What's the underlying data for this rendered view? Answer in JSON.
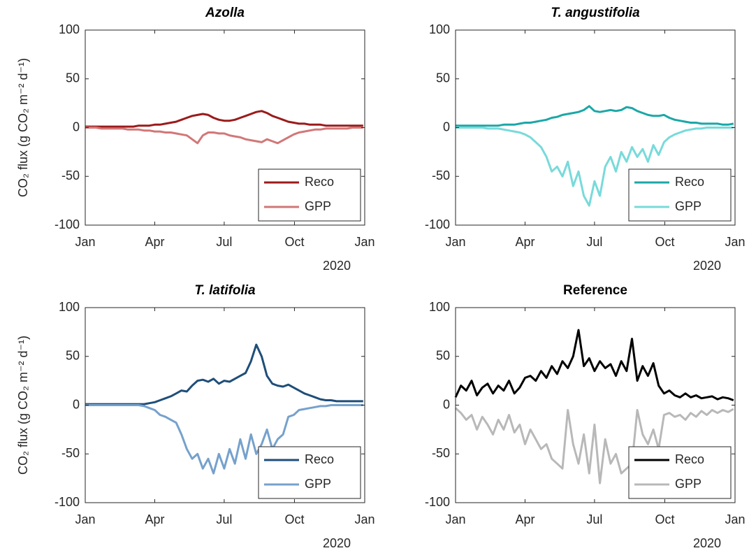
{
  "chart_data": [
    {
      "type": "line",
      "title": "Azolla",
      "title_style": "italic",
      "ylabel": "CO₂ flux (g CO₂ m⁻² d⁻¹)",
      "x_annotation": "2020",
      "legend": "lower right",
      "x": [
        0,
        7,
        14,
        21,
        28,
        35,
        42,
        49,
        56,
        63,
        70,
        77,
        84,
        91,
        98,
        105,
        112,
        119,
        126,
        133,
        140,
        147,
        154,
        161,
        168,
        175,
        182,
        189,
        196,
        203,
        210,
        217,
        224,
        231,
        238,
        245,
        252,
        259,
        266,
        273,
        280,
        287,
        294,
        301,
        308,
        315,
        322,
        329,
        336,
        343,
        350,
        357,
        364
      ],
      "xlim": [
        0,
        366
      ],
      "xticks": [
        {
          "value": 0,
          "label": "Jan"
        },
        {
          "value": 91,
          "label": "Apr"
        },
        {
          "value": 182,
          "label": "Jul"
        },
        {
          "value": 274,
          "label": "Oct"
        },
        {
          "value": 366,
          "label": "Jan"
        }
      ],
      "ylim": [
        -100,
        100
      ],
      "yticks": [
        -100,
        -50,
        0,
        50,
        100
      ],
      "series": [
        {
          "name": "Reco",
          "color": "#9b1b1b",
          "values": [
            1,
            1,
            1,
            1,
            1,
            1,
            1,
            1,
            1,
            1,
            2,
            2,
            2,
            3,
            3,
            4,
            5,
            6,
            8,
            10,
            12,
            13,
            14,
            13,
            10,
            8,
            7,
            7,
            8,
            10,
            12,
            14,
            16,
            17,
            15,
            12,
            10,
            8,
            6,
            5,
            4,
            4,
            3,
            3,
            3,
            2,
            2,
            2,
            2,
            2,
            2,
            2,
            2
          ]
        },
        {
          "name": "GPP",
          "color": "#d27777",
          "values": [
            0,
            0,
            0,
            -1,
            -1,
            -1,
            -1,
            -1,
            -2,
            -2,
            -2,
            -3,
            -3,
            -4,
            -4,
            -5,
            -5,
            -6,
            -7,
            -8,
            -12,
            -16,
            -8,
            -5,
            -5,
            -6,
            -6,
            -8,
            -9,
            -10,
            -12,
            -13,
            -14,
            -15,
            -12,
            -14,
            -16,
            -13,
            -10,
            -7,
            -5,
            -4,
            -3,
            -2,
            -2,
            -1,
            -1,
            -1,
            -1,
            -1,
            0,
            0,
            0
          ]
        }
      ]
    },
    {
      "type": "line",
      "title": "T. angustifolia",
      "title_style": "italic",
      "x_annotation": "2020",
      "legend": "lower right",
      "x": [
        0,
        7,
        14,
        21,
        28,
        35,
        42,
        49,
        56,
        63,
        70,
        77,
        84,
        91,
        98,
        105,
        112,
        119,
        126,
        133,
        140,
        147,
        154,
        161,
        168,
        175,
        182,
        189,
        196,
        203,
        210,
        217,
        224,
        231,
        238,
        245,
        252,
        259,
        266,
        273,
        280,
        287,
        294,
        301,
        308,
        315,
        322,
        329,
        336,
        343,
        350,
        357,
        364
      ],
      "xlim": [
        0,
        366
      ],
      "xticks": [
        {
          "value": 0,
          "label": "Jan"
        },
        {
          "value": 91,
          "label": "Apr"
        },
        {
          "value": 182,
          "label": "Jul"
        },
        {
          "value": 274,
          "label": "Oct"
        },
        {
          "value": 366,
          "label": "Jan"
        }
      ],
      "ylim": [
        -100,
        100
      ],
      "yticks": [
        -100,
        -50,
        0,
        50,
        100
      ],
      "series": [
        {
          "name": "Reco",
          "color": "#1ca7a7",
          "values": [
            2,
            2,
            2,
            2,
            2,
            2,
            2,
            2,
            2,
            3,
            3,
            3,
            4,
            5,
            5,
            6,
            7,
            8,
            10,
            11,
            13,
            14,
            15,
            16,
            18,
            22,
            17,
            16,
            17,
            18,
            17,
            18,
            21,
            20,
            17,
            15,
            13,
            12,
            12,
            13,
            10,
            8,
            7,
            6,
            5,
            5,
            4,
            4,
            4,
            4,
            3,
            3,
            4
          ]
        },
        {
          "name": "GPP",
          "color": "#78dada",
          "values": [
            0,
            0,
            0,
            0,
            0,
            0,
            -1,
            -1,
            -1,
            -2,
            -3,
            -4,
            -5,
            -7,
            -10,
            -15,
            -20,
            -30,
            -45,
            -40,
            -50,
            -35,
            -60,
            -45,
            -70,
            -80,
            -55,
            -70,
            -40,
            -30,
            -45,
            -25,
            -35,
            -20,
            -30,
            -22,
            -35,
            -18,
            -28,
            -15,
            -10,
            -7,
            -5,
            -3,
            -2,
            -1,
            -1,
            0,
            0,
            0,
            0,
            0,
            0
          ]
        }
      ]
    },
    {
      "type": "line",
      "title": "T. latifolia",
      "title_style": "italic",
      "ylabel": "CO₂ flux (g CO₂ m⁻² d⁻¹)",
      "x_annotation": "2020",
      "legend": "lower right",
      "x": [
        0,
        7,
        14,
        21,
        28,
        35,
        42,
        49,
        56,
        63,
        70,
        77,
        84,
        91,
        98,
        105,
        112,
        119,
        126,
        133,
        140,
        147,
        154,
        161,
        168,
        175,
        182,
        189,
        196,
        203,
        210,
        217,
        224,
        231,
        238,
        245,
        252,
        259,
        266,
        273,
        280,
        287,
        294,
        301,
        308,
        315,
        322,
        329,
        336,
        343,
        350,
        357,
        364
      ],
      "xlim": [
        0,
        366
      ],
      "xticks": [
        {
          "value": 0,
          "label": "Jan"
        },
        {
          "value": 91,
          "label": "Apr"
        },
        {
          "value": 182,
          "label": "Jul"
        },
        {
          "value": 274,
          "label": "Oct"
        },
        {
          "value": 366,
          "label": "Jan"
        }
      ],
      "ylim": [
        -100,
        100
      ],
      "yticks": [
        -100,
        -50,
        0,
        50,
        100
      ],
      "series": [
        {
          "name": "Reco",
          "color": "#1f4e79",
          "values": [
            1,
            1,
            1,
            1,
            1,
            1,
            1,
            1,
            1,
            1,
            1,
            1,
            2,
            3,
            5,
            7,
            9,
            12,
            15,
            14,
            20,
            25,
            26,
            24,
            27,
            22,
            25,
            24,
            27,
            30,
            33,
            45,
            62,
            50,
            30,
            22,
            20,
            19,
            21,
            18,
            15,
            12,
            10,
            8,
            6,
            5,
            5,
            4,
            4,
            4,
            4,
            4,
            4
          ]
        },
        {
          "name": "GPP",
          "color": "#76a1cc",
          "values": [
            0,
            0,
            0,
            0,
            0,
            0,
            0,
            0,
            0,
            0,
            0,
            -1,
            -3,
            -5,
            -10,
            -12,
            -15,
            -18,
            -30,
            -45,
            -55,
            -50,
            -65,
            -55,
            -70,
            -50,
            -65,
            -45,
            -60,
            -35,
            -55,
            -30,
            -50,
            -40,
            -25,
            -45,
            -35,
            -30,
            -12,
            -10,
            -5,
            -4,
            -3,
            -2,
            -1,
            -1,
            0,
            0,
            0,
            0,
            0,
            0,
            0
          ]
        }
      ]
    },
    {
      "type": "line",
      "title": "Reference",
      "title_style": "normal",
      "x_annotation": "2020",
      "legend": "lower right",
      "x": [
        0,
        7,
        14,
        21,
        28,
        35,
        42,
        49,
        56,
        63,
        70,
        77,
        84,
        91,
        98,
        105,
        112,
        119,
        126,
        133,
        140,
        147,
        154,
        161,
        168,
        175,
        182,
        189,
        196,
        203,
        210,
        217,
        224,
        231,
        238,
        245,
        252,
        259,
        266,
        273,
        280,
        287,
        294,
        301,
        308,
        315,
        322,
        329,
        336,
        343,
        350,
        357,
        364
      ],
      "xlim": [
        0,
        366
      ],
      "xticks": [
        {
          "value": 0,
          "label": "Jan"
        },
        {
          "value": 91,
          "label": "Apr"
        },
        {
          "value": 182,
          "label": "Jul"
        },
        {
          "value": 274,
          "label": "Oct"
        },
        {
          "value": 366,
          "label": "Jan"
        }
      ],
      "ylim": [
        -100,
        100
      ],
      "yticks": [
        -100,
        -50,
        0,
        50,
        100
      ],
      "series": [
        {
          "name": "Reco",
          "color": "#000000",
          "values": [
            8,
            20,
            15,
            25,
            10,
            18,
            22,
            12,
            20,
            15,
            25,
            12,
            18,
            28,
            30,
            25,
            35,
            28,
            40,
            32,
            45,
            38,
            50,
            77,
            40,
            48,
            35,
            45,
            38,
            42,
            30,
            45,
            35,
            68,
            25,
            40,
            30,
            43,
            20,
            12,
            15,
            10,
            8,
            12,
            8,
            10,
            7,
            8,
            9,
            6,
            8,
            7,
            5
          ]
        },
        {
          "name": "GPP",
          "color": "#b8b8b8",
          "values": [
            -3,
            -8,
            -15,
            -10,
            -25,
            -12,
            -20,
            -30,
            -15,
            -25,
            -10,
            -28,
            -20,
            -40,
            -25,
            -35,
            -45,
            -40,
            -55,
            -60,
            -65,
            -5,
            -40,
            -60,
            -30,
            -70,
            -20,
            -80,
            -35,
            -60,
            -50,
            -70,
            -65,
            -60,
            -5,
            -30,
            -40,
            -25,
            -45,
            -10,
            -8,
            -12,
            -10,
            -15,
            -8,
            -12,
            -6,
            -10,
            -5,
            -8,
            -5,
            -7,
            -4
          ]
        }
      ]
    }
  ]
}
